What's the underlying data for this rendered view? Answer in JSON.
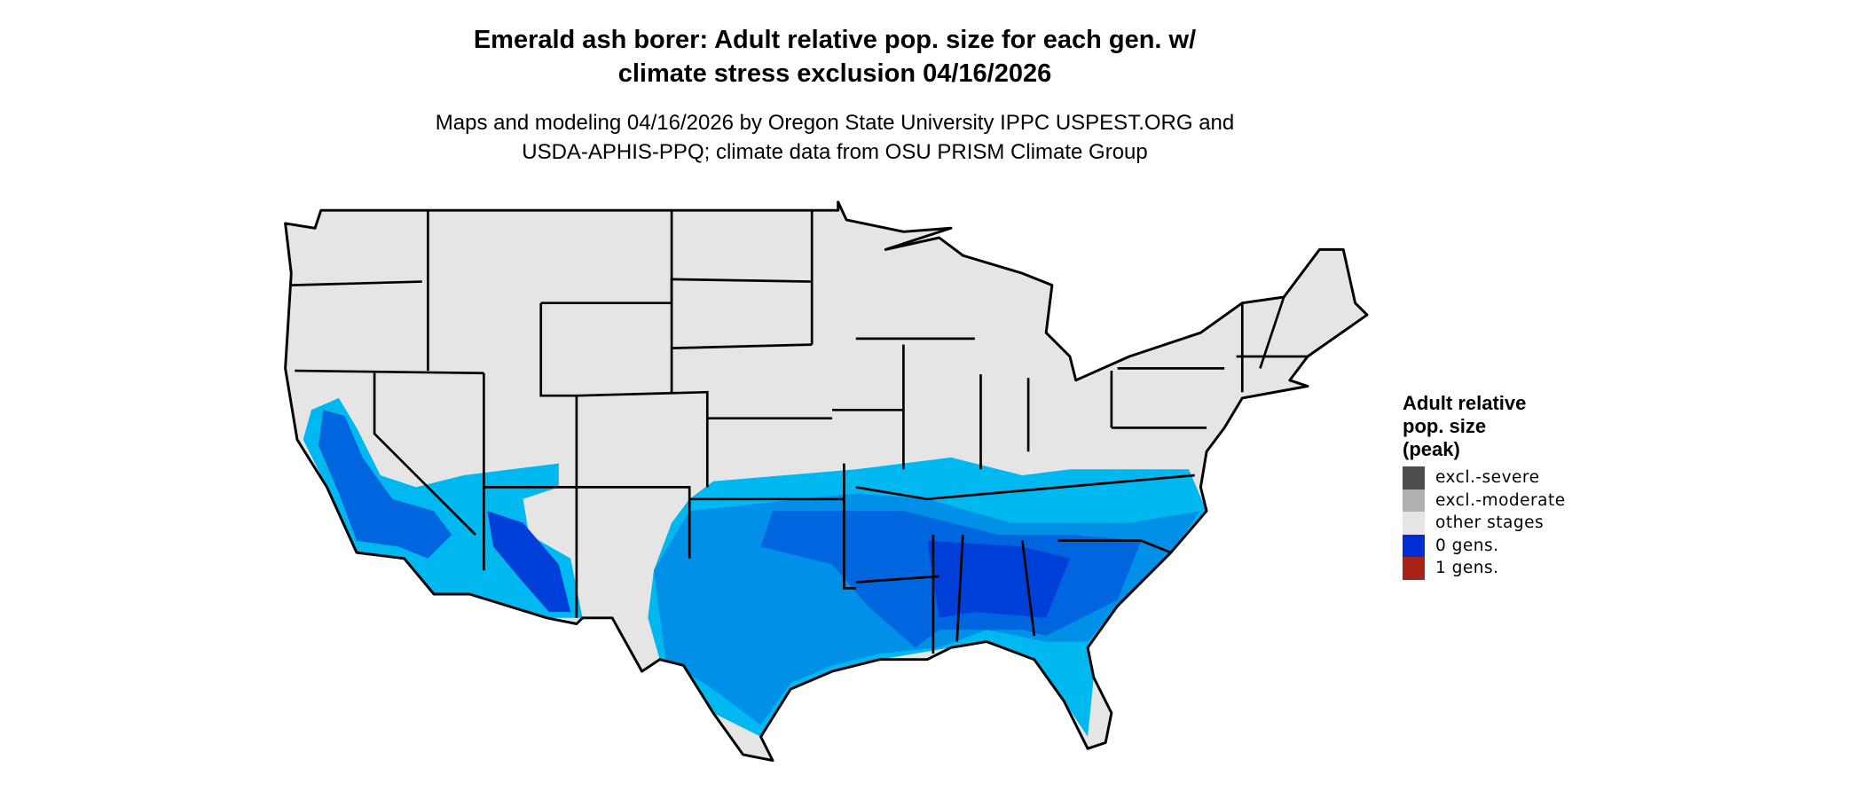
{
  "title": {
    "line1": "Emerald ash borer: Adult relative pop. size for each gen. w/",
    "line2": "climate stress exclusion 04/16/2026"
  },
  "subtitle": {
    "line1": "Maps and modeling 04/16/2026 by Oregon State University IPPC USPEST.ORG and",
    "line2": "USDA-APHIS-PPQ; climate data from OSU PRISM Climate Group"
  },
  "legend": {
    "title_lines": [
      "Adult relative",
      "pop. size",
      "(peak)"
    ],
    "items": [
      {
        "label": "excl.-severe",
        "color": "#4d4d4d"
      },
      {
        "label": "excl.-moderate",
        "color": "#b0b0b0"
      },
      {
        "label": "other stages",
        "color": "#e5e5e5"
      },
      {
        "label": "0 gens.",
        "color": "#002ed4"
      },
      {
        "label": "1 gens.",
        "color": "#a82315"
      }
    ]
  },
  "map": {
    "region": "Contiguous United States",
    "base_color": "#e5e5e5",
    "border_color": "#000000",
    "zero_gen_shades": [
      "#00b8f0",
      "#0090e8",
      "#0066e0",
      "#0040d8"
    ]
  }
}
